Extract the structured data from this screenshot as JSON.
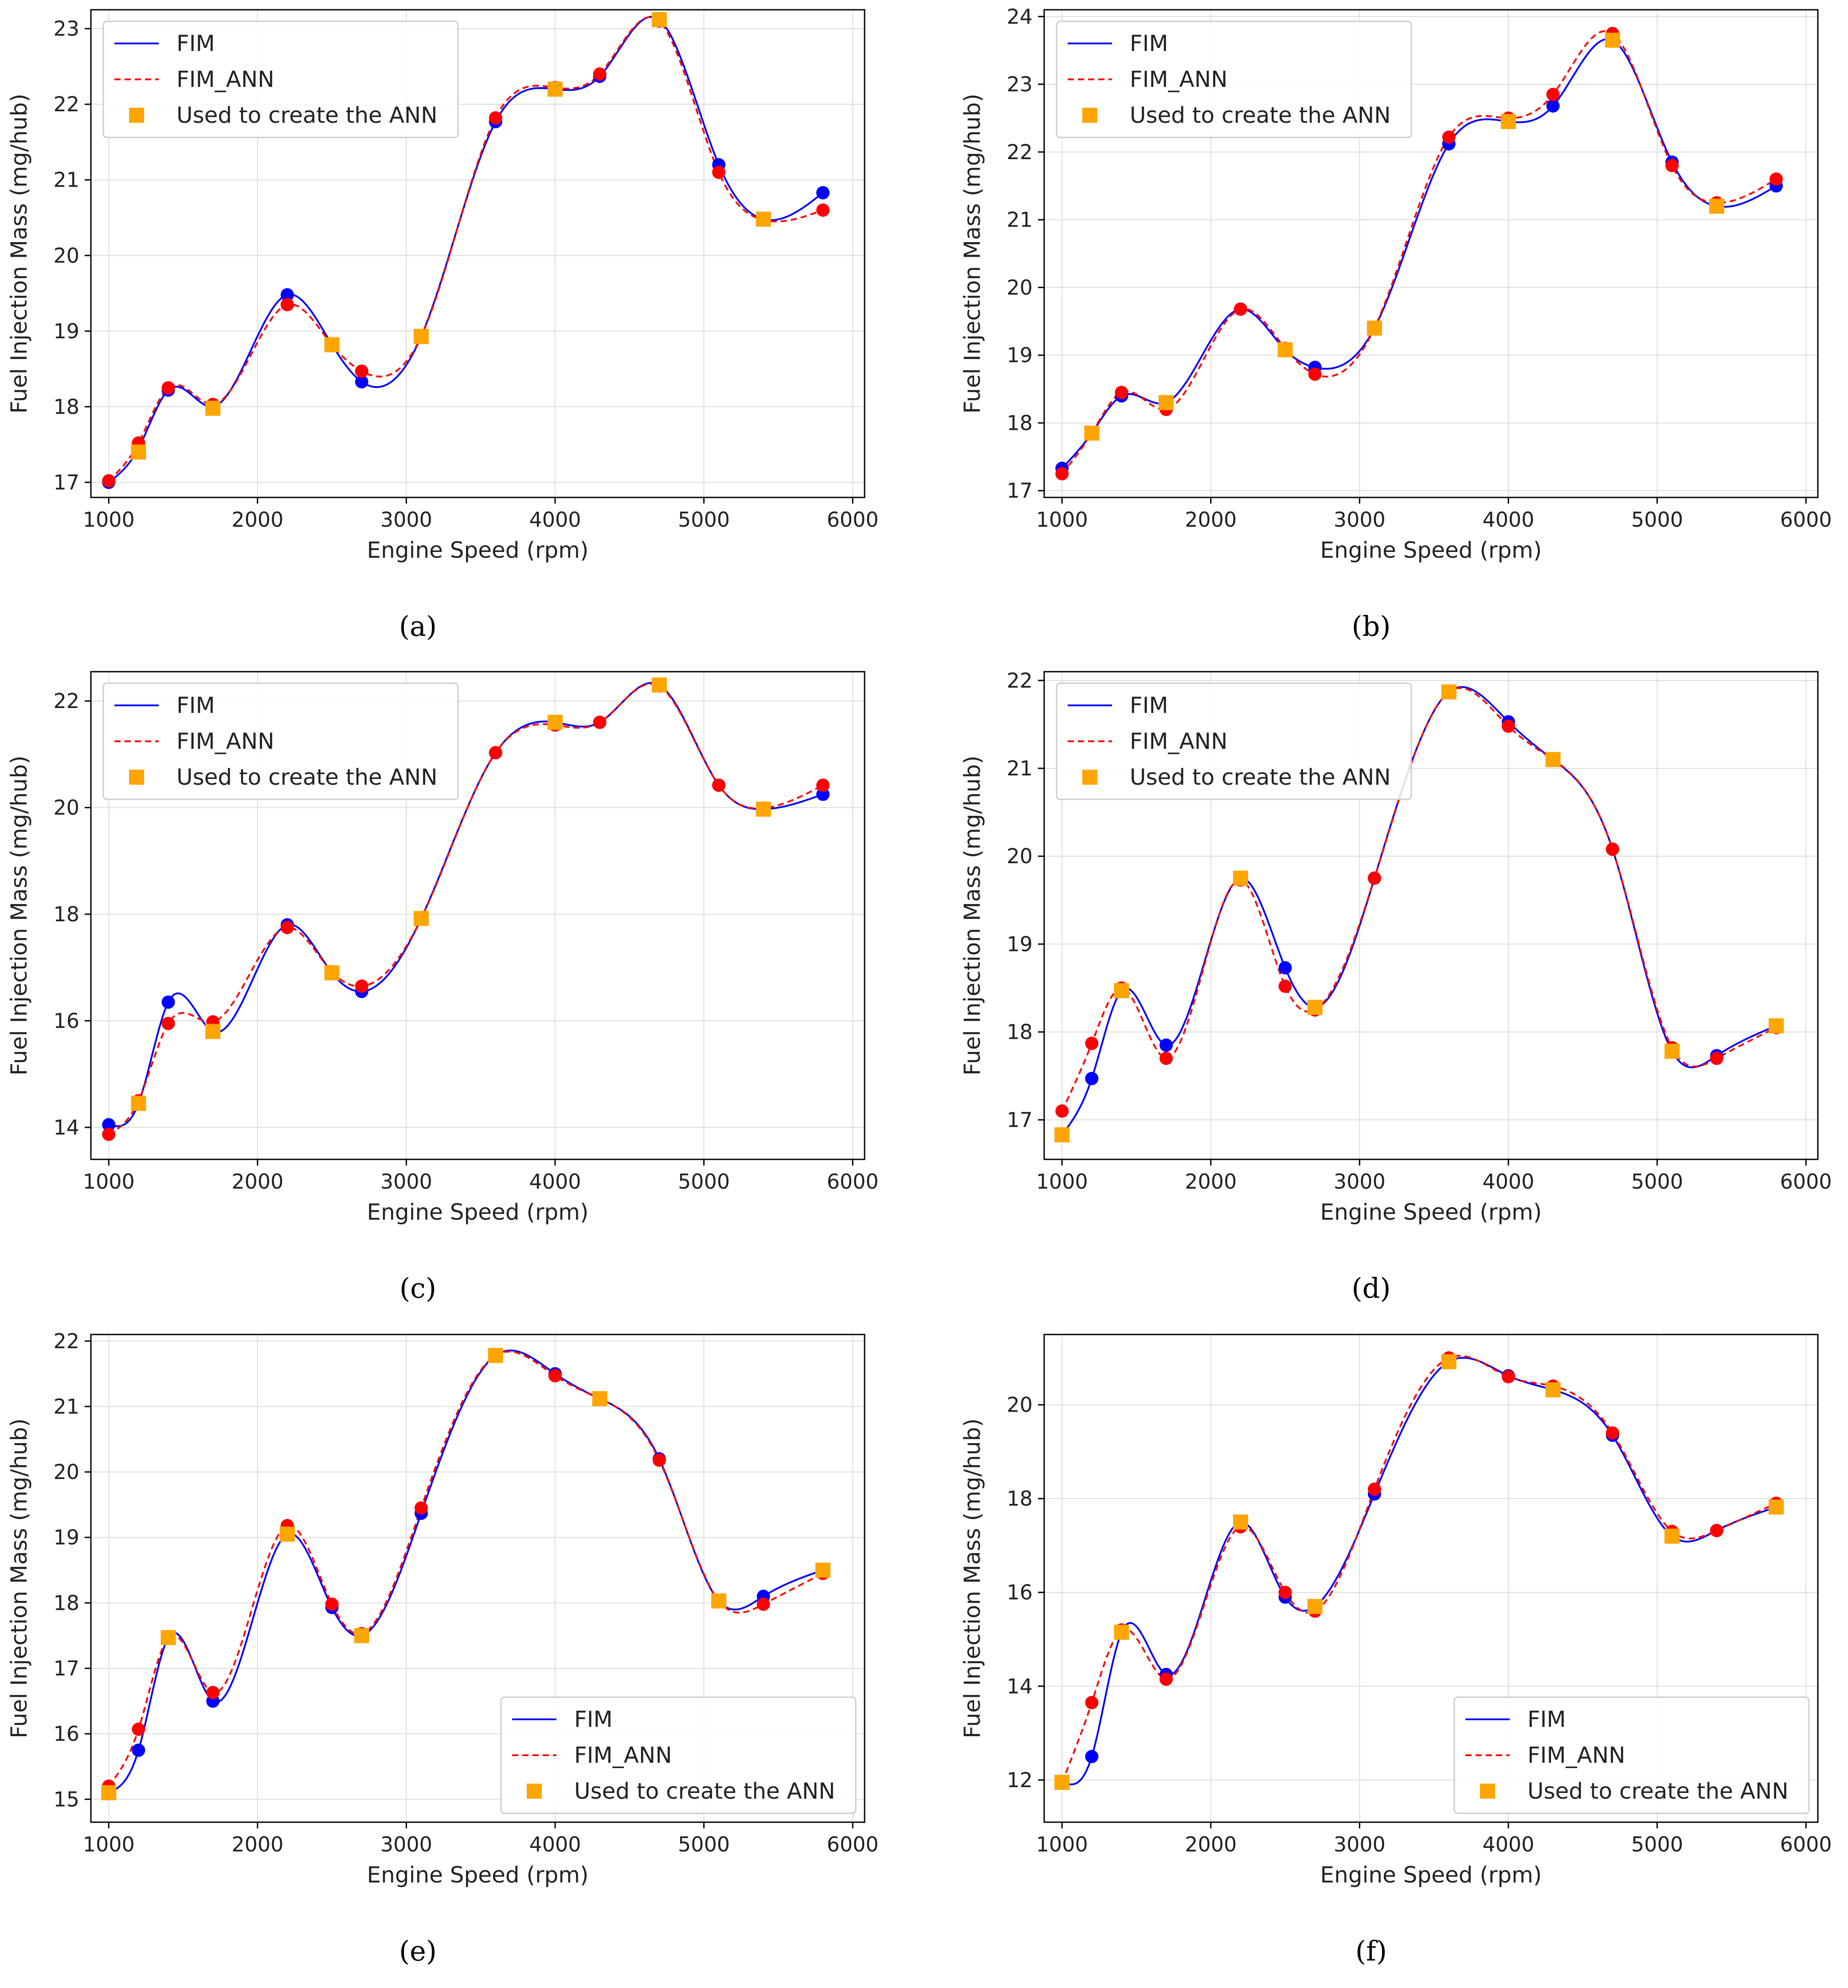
{
  "figure": {
    "panel_labels": [
      "(a)",
      "(b)",
      "(c)",
      "(d)",
      "(e)",
      "(f)"
    ],
    "colors": {
      "fim": "#0000ff",
      "fim_ann": "#ff0000",
      "ann_points": "#ffa500",
      "grid": "#dcdcdc",
      "axis": "#000000"
    }
  },
  "chart_data": [
    {
      "type": "line",
      "panel": "(a)",
      "xlabel": "Engine Speed (rpm)",
      "ylabel": "Fuel Injection Mass (mg/hub)",
      "xlim": [
        880,
        6080
      ],
      "ylim": [
        16.8,
        23.25
      ],
      "xticks": [
        1000,
        2000,
        3000,
        4000,
        5000,
        6000
      ],
      "yticks": [
        17,
        18,
        19,
        20,
        21,
        22,
        23
      ],
      "grid": true,
      "legend": {
        "position": "top-left",
        "entries": [
          "FIM",
          "FIM_ANN",
          "Used to create the ANN"
        ]
      },
      "x": [
        1000,
        1200,
        1400,
        1700,
        2200,
        2500,
        2700,
        3100,
        3600,
        4000,
        4300,
        4700,
        5100,
        5400,
        5800
      ],
      "series": [
        {
          "name": "FIM",
          "values": [
            17.0,
            17.45,
            18.22,
            18.0,
            19.48,
            18.82,
            18.33,
            18.93,
            21.77,
            22.2,
            22.37,
            23.12,
            21.2,
            20.48,
            20.83
          ]
        },
        {
          "name": "FIM_ANN",
          "values": [
            17.02,
            17.52,
            18.25,
            18.03,
            19.35,
            18.82,
            18.47,
            18.93,
            21.82,
            22.22,
            22.4,
            23.1,
            21.1,
            20.47,
            20.6
          ]
        },
        {
          "name": "Used to create the ANN",
          "x": [
            1200,
            1700,
            2500,
            3100,
            4000,
            4700,
            5400
          ],
          "values": [
            17.4,
            17.98,
            18.82,
            18.93,
            22.2,
            23.12,
            20.48
          ]
        }
      ]
    },
    {
      "type": "line",
      "panel": "(b)",
      "xlabel": "Engine Speed (rpm)",
      "ylabel": "Fuel Injection Mass (mg/hub)",
      "xlim": [
        880,
        6080
      ],
      "ylim": [
        16.9,
        24.1
      ],
      "xticks": [
        1000,
        2000,
        3000,
        4000,
        5000,
        6000
      ],
      "yticks": [
        17,
        18,
        19,
        20,
        21,
        22,
        23,
        24
      ],
      "grid": true,
      "legend": {
        "position": "top-left",
        "entries": [
          "FIM",
          "FIM_ANN",
          "Used to create the ANN"
        ]
      },
      "x": [
        1000,
        1200,
        1400,
        1700,
        2200,
        2500,
        2700,
        3100,
        3600,
        4000,
        4300,
        4700,
        5100,
        5400,
        5800
      ],
      "series": [
        {
          "name": "FIM",
          "values": [
            17.33,
            17.85,
            18.4,
            18.3,
            19.68,
            19.08,
            18.82,
            19.4,
            22.12,
            22.45,
            22.68,
            23.65,
            21.85,
            21.2,
            21.5
          ]
        },
        {
          "name": "FIM_ANN",
          "values": [
            17.25,
            17.85,
            18.45,
            18.2,
            19.68,
            19.1,
            18.72,
            19.4,
            22.22,
            22.5,
            22.85,
            23.75,
            21.8,
            21.25,
            21.6
          ]
        },
        {
          "name": "Used to create the ANN",
          "x": [
            1200,
            1700,
            2500,
            3100,
            4000,
            4700,
            5400
          ],
          "values": [
            17.85,
            18.3,
            19.08,
            19.4,
            22.45,
            23.65,
            21.2
          ]
        }
      ]
    },
    {
      "type": "line",
      "panel": "(c)",
      "xlabel": "Engine Speed (rpm)",
      "ylabel": "Fuel Injection Mass (mg/hub)",
      "xlim": [
        880,
        6080
      ],
      "ylim": [
        13.4,
        22.55
      ],
      "xticks": [
        1000,
        2000,
        3000,
        4000,
        5000,
        6000
      ],
      "yticks": [
        14,
        16,
        18,
        20,
        22
      ],
      "grid": true,
      "legend": {
        "position": "top-left",
        "entries": [
          "FIM",
          "FIM_ANN",
          "Used to create the ANN"
        ]
      },
      "x": [
        1000,
        1200,
        1400,
        1700,
        2200,
        2500,
        2700,
        3100,
        3600,
        4000,
        4300,
        4700,
        5100,
        5400,
        5800
      ],
      "series": [
        {
          "name": "FIM",
          "values": [
            14.05,
            14.45,
            16.35,
            15.8,
            17.8,
            16.9,
            16.55,
            17.92,
            21.03,
            21.6,
            21.6,
            22.3,
            20.42,
            19.97,
            20.25
          ]
        },
        {
          "name": "FIM_ANN",
          "values": [
            13.87,
            14.5,
            15.95,
            15.98,
            17.75,
            16.92,
            16.65,
            17.92,
            21.03,
            21.55,
            21.6,
            22.28,
            20.42,
            19.99,
            20.42
          ]
        },
        {
          "name": "Used to create the ANN",
          "x": [
            1200,
            1700,
            2500,
            3100,
            4000,
            4700,
            5400
          ],
          "values": [
            14.45,
            15.8,
            16.9,
            17.92,
            21.6,
            22.3,
            19.97
          ]
        }
      ]
    },
    {
      "type": "line",
      "panel": "(d)",
      "xlabel": "Engine Speed (rpm)",
      "ylabel": "Fuel Injection Mass (mg/hub)",
      "xlim": [
        880,
        6080
      ],
      "ylim": [
        16.55,
        22.1
      ],
      "xticks": [
        1000,
        2000,
        3000,
        4000,
        5000,
        6000
      ],
      "yticks": [
        17,
        18,
        19,
        20,
        21,
        22
      ],
      "grid": true,
      "legend": {
        "position": "top-left",
        "entries": [
          "FIM",
          "FIM_ANN",
          "Used to create the ANN"
        ]
      },
      "x": [
        1000,
        1200,
        1400,
        1700,
        2200,
        2500,
        2700,
        3100,
        3600,
        4000,
        4300,
        4700,
        5100,
        5400,
        5800
      ],
      "series": [
        {
          "name": "FIM",
          "values": [
            16.83,
            17.47,
            18.47,
            17.85,
            19.75,
            18.73,
            18.28,
            19.75,
            21.87,
            21.53,
            21.1,
            20.08,
            17.78,
            17.73,
            18.07
          ]
        },
        {
          "name": "FIM_ANN",
          "values": [
            17.1,
            17.87,
            18.5,
            17.7,
            19.73,
            18.52,
            18.25,
            19.75,
            21.87,
            21.48,
            21.1,
            20.08,
            17.82,
            17.7,
            18.05
          ]
        },
        {
          "name": "Used to create the ANN",
          "x": [
            1000,
            1400,
            2200,
            2700,
            3600,
            4300,
            5100,
            5800
          ],
          "values": [
            16.83,
            18.47,
            19.75,
            18.28,
            21.87,
            21.1,
            17.78,
            18.07
          ]
        }
      ]
    },
    {
      "type": "line",
      "panel": "(e)",
      "xlabel": "Engine Speed (rpm)",
      "ylabel": "Fuel Injection Mass (mg/hub)",
      "xlim": [
        880,
        6080
      ],
      "ylim": [
        14.65,
        22.1
      ],
      "xticks": [
        1000,
        2000,
        3000,
        4000,
        5000,
        6000
      ],
      "yticks": [
        15,
        16,
        17,
        18,
        19,
        20,
        21,
        22
      ],
      "grid": true,
      "legend": {
        "position": "bottom-right",
        "entries": [
          "FIM",
          "FIM_ANN",
          "Used to create the ANN"
        ]
      },
      "x": [
        1000,
        1200,
        1400,
        1700,
        2200,
        2500,
        2700,
        3100,
        3600,
        4000,
        4300,
        4700,
        5100,
        5400,
        5800
      ],
      "series": [
        {
          "name": "FIM",
          "values": [
            15.1,
            15.75,
            17.47,
            16.5,
            19.05,
            17.93,
            17.5,
            19.37,
            21.78,
            21.5,
            21.12,
            20.2,
            18.03,
            18.1,
            18.5
          ]
        },
        {
          "name": "FIM_ANN",
          "values": [
            15.2,
            16.07,
            17.47,
            16.63,
            19.18,
            17.98,
            17.53,
            19.45,
            21.78,
            21.47,
            21.12,
            20.18,
            18.03,
            17.98,
            18.45
          ]
        },
        {
          "name": "Used to create the ANN",
          "x": [
            1000,
            1400,
            2200,
            2700,
            3600,
            4300,
            5100,
            5800
          ],
          "values": [
            15.1,
            17.47,
            19.05,
            17.5,
            21.78,
            21.12,
            18.03,
            18.5
          ]
        }
      ]
    },
    {
      "type": "line",
      "panel": "(f)",
      "xlabel": "Engine Speed (rpm)",
      "ylabel": "Fuel Injection Mass (mg/hub)",
      "xlim": [
        880,
        6080
      ],
      "ylim": [
        11.1,
        21.5
      ],
      "xticks": [
        1000,
        2000,
        3000,
        4000,
        5000,
        6000
      ],
      "yticks": [
        12,
        14,
        16,
        18,
        20
      ],
      "grid": true,
      "legend": {
        "position": "bottom-right",
        "entries": [
          "FIM",
          "FIM_ANN",
          "Used to create the ANN"
        ]
      },
      "x": [
        1000,
        1200,
        1400,
        1700,
        2200,
        2500,
        2700,
        3100,
        3600,
        4000,
        4300,
        4700,
        5100,
        5400,
        5800
      ],
      "series": [
        {
          "name": "FIM",
          "values": [
            11.95,
            12.5,
            15.15,
            14.25,
            17.5,
            15.9,
            15.7,
            18.1,
            20.92,
            20.62,
            20.32,
            19.35,
            17.2,
            17.32,
            17.82
          ]
        },
        {
          "name": "FIM_ANN",
          "values": [
            11.95,
            13.65,
            15.2,
            14.15,
            17.4,
            16.0,
            15.6,
            18.2,
            21.0,
            20.6,
            20.4,
            19.4,
            17.3,
            17.32,
            17.9
          ]
        },
        {
          "name": "Used to create the ANN",
          "x": [
            1000,
            1400,
            2200,
            2700,
            3600,
            4300,
            5100,
            5800
          ],
          "values": [
            11.95,
            15.15,
            17.5,
            15.7,
            20.92,
            20.32,
            17.2,
            17.82
          ]
        }
      ]
    }
  ]
}
